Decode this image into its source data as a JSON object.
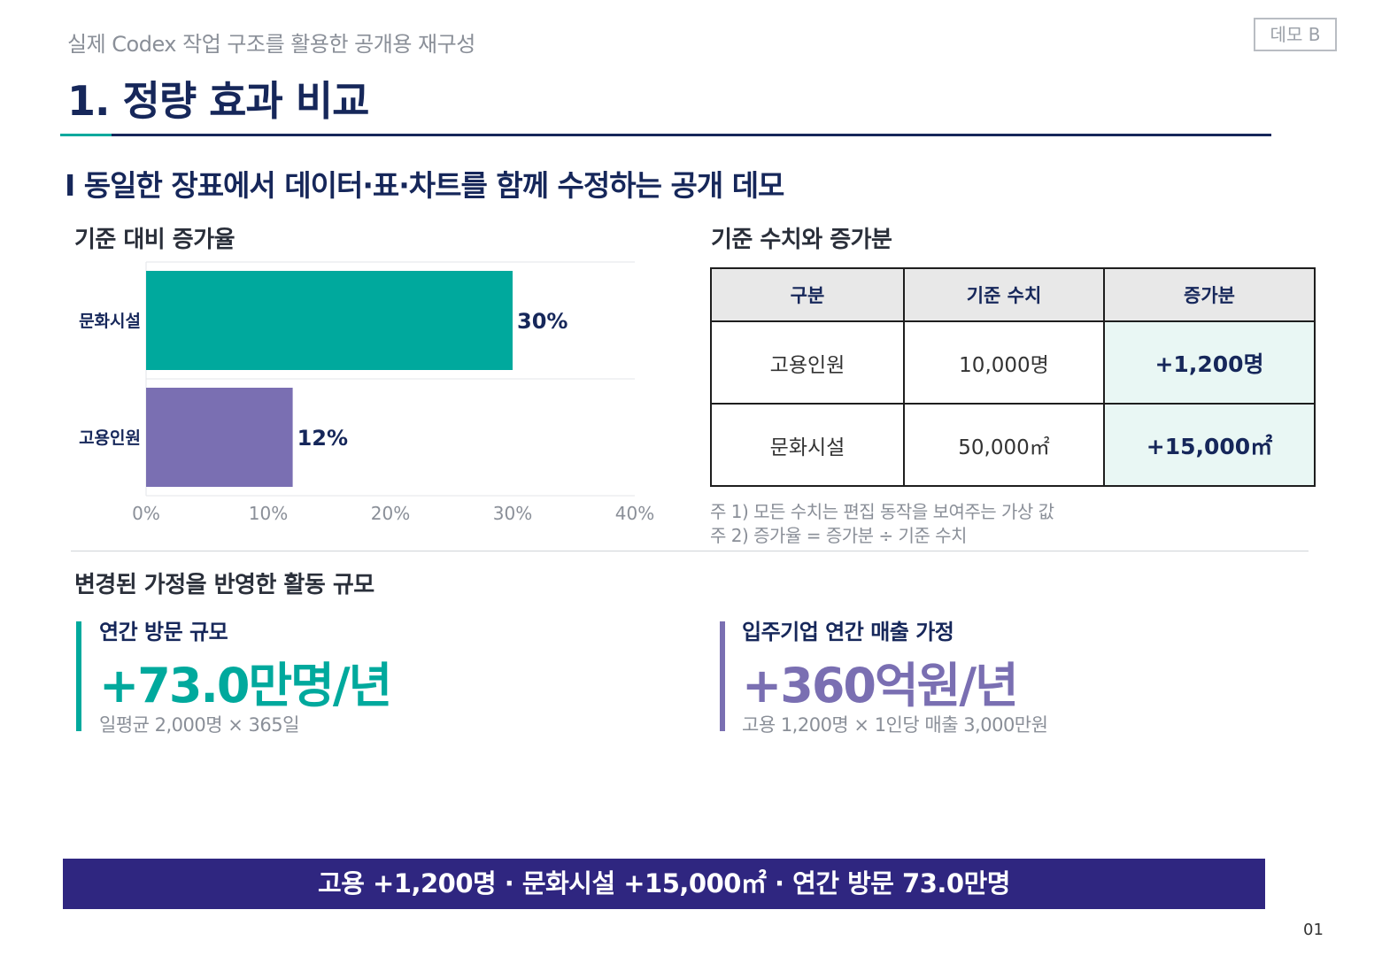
{
  "header": {
    "kicker": "실제 Codex 작업 구조를 활용한 공개용 재구성",
    "badge": "데모 B",
    "title": "1. 정량 효과 비교",
    "subtitle": "I 동일한 장표에서 데이터·표·차트를 함께 수정하는 공개 데모"
  },
  "chart_section": {
    "title": "기준 대비 증가율"
  },
  "chart_data": {
    "type": "bar",
    "orientation": "horizontal",
    "categories": [
      "문화시설",
      "고용인원"
    ],
    "values": [
      30,
      12
    ],
    "data_labels": [
      "30%",
      "12%"
    ],
    "xlim": [
      0,
      40
    ],
    "x_ticks": [
      "0%",
      "10%",
      "20%",
      "30%",
      "40%"
    ],
    "colors": [
      "#00a99d",
      "#7a6fb2"
    ],
    "grid": true
  },
  "table_section": {
    "title": "기준 수치와 증가분",
    "headers": [
      "구분",
      "기준 수치",
      "증가분"
    ],
    "rows": [
      [
        "고용인원",
        "10,000명",
        "+1,200명"
      ],
      [
        "문화시설",
        "50,000㎡",
        "+15,000㎡"
      ]
    ],
    "notes": [
      "주 1) 모든 수치는 편집 동작을 보여주는 가상 값",
      "주 2) 증가율 = 증가분 ÷ 기준 수치"
    ]
  },
  "scale_section": {
    "title": "변경된 가정을 반영한 활동 규모",
    "kpis": [
      {
        "label": "연간 방문 규모",
        "value": "+73.0만명/년",
        "formula": "일평균 2,000명 × 365일",
        "color": "#00a99d"
      },
      {
        "label": "입주기업 연간 매출 가정",
        "value": "+360억원/년",
        "formula": "고용 1,200명 × 1인당 매출 3,000만원",
        "color": "#7a6fb2"
      }
    ]
  },
  "banner": "고용 +1,200명 · 문화시설 +15,000㎡ · 연간 방문 73.0만명",
  "page_number": "01"
}
